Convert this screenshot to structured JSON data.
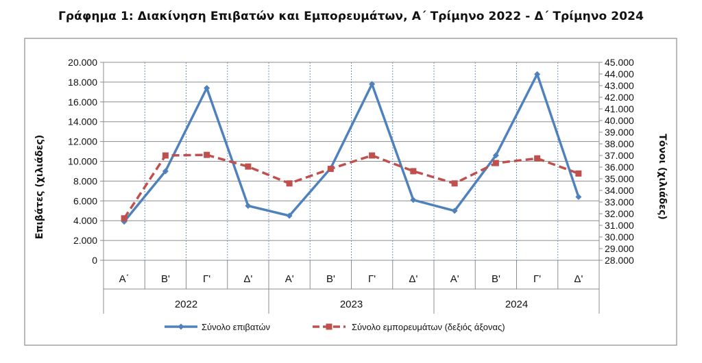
{
  "chart_data": {
    "type": "line",
    "title": "Γράφημα 1: Διακίνηση Επιβατών και Εμπορευμάτων, Α΄ Τρίμηνο 2022 - Δ΄ Τρίμηνο 2024",
    "ylabel": "Επιβάτες  (χιλιάδες)",
    "y2label": "Τόνοι  (χιλιάδες)",
    "categories": [
      "Α΄",
      "Β'",
      "Γ'",
      "Δ'",
      "Α'",
      "Β'",
      "Γ'",
      "Δ'",
      "Α'",
      "Β'",
      "Γ'",
      "Δ'"
    ],
    "years": [
      "2022",
      "2023",
      "2024"
    ],
    "ylim": [
      0,
      20000
    ],
    "y2lim": [
      28000,
      45000
    ],
    "y_ticks": [
      "0",
      "2.000",
      "4.000",
      "6.000",
      "8.000",
      "10.000",
      "12.000",
      "14.000",
      "16.000",
      "18.000",
      "20.000"
    ],
    "y2_ticks": [
      "28.000",
      "29.000",
      "30.000",
      "31.000",
      "32.000",
      "33.000",
      "34.000",
      "35.000",
      "36.000",
      "37.000",
      "38.000",
      "39.000",
      "40.000",
      "41.000",
      "42.000",
      "43.000",
      "44.000",
      "45.000"
    ],
    "grid": true,
    "legend_position": "bottom",
    "series": [
      {
        "name": "Σύνολο επιβατών",
        "axis": "left",
        "color": "#4F81BD",
        "marker": "diamond",
        "values": [
          3900,
          9000,
          17400,
          5500,
          4500,
          9300,
          17800,
          6100,
          5000,
          10600,
          18800,
          6400
        ]
      },
      {
        "name": "Σύνολο εμπορευμάτων (δεξιός άξονας)",
        "axis": "right",
        "color": "#C0504D",
        "marker": "square",
        "dashed": true,
        "values": [
          31600,
          37000,
          37050,
          36050,
          34600,
          35850,
          37000,
          35650,
          34600,
          36350,
          36750,
          35450
        ]
      }
    ]
  }
}
